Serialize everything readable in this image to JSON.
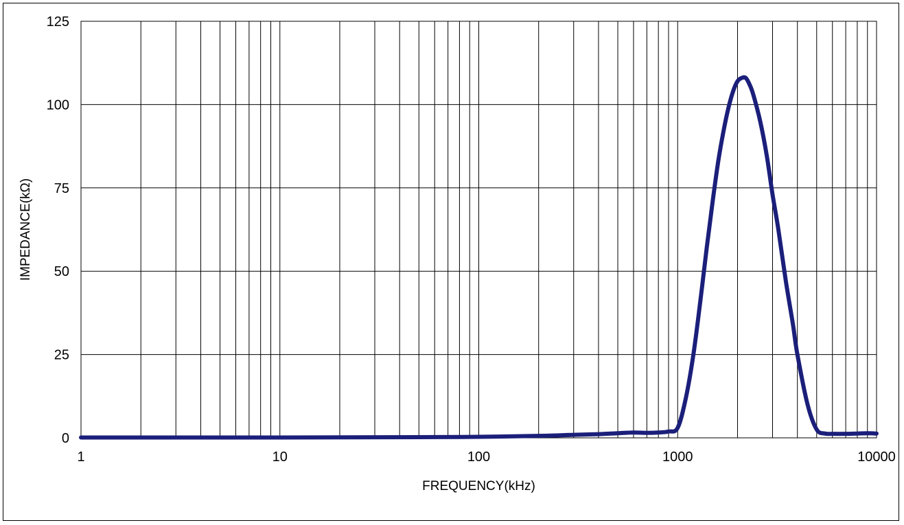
{
  "chart_data": {
    "type": "line",
    "title": "",
    "xlabel": "FREQUENCY(kHz)",
    "ylabel": "IMPEDANCE(kΩ)",
    "x_scale": "log",
    "xlim": [
      1,
      10000
    ],
    "ylim": [
      0,
      125
    ],
    "x_ticks": [
      1,
      10,
      100,
      1000,
      10000
    ],
    "x_tick_labels": [
      "1",
      "10",
      "100",
      "1000",
      "10000"
    ],
    "y_ticks": [
      0,
      25,
      50,
      75,
      100,
      125
    ],
    "y_tick_labels": [
      "0",
      "25",
      "50",
      "75",
      "100",
      "125"
    ],
    "grid": true,
    "legend": "none",
    "series": [
      {
        "color": "#1b1f7a",
        "x": [
          1,
          10,
          50,
          100,
          200,
          300,
          400,
          500,
          600,
          700,
          800,
          900,
          1000,
          1100,
          1200,
          1300,
          1400,
          1500,
          1600,
          1700,
          1800,
          1900,
          2000,
          2100,
          2200,
          2300,
          2400,
          2600,
          2800,
          3000,
          3200,
          3500,
          3800,
          4000,
          4500,
          5000,
          5500,
          6000,
          7000,
          8000,
          9000,
          10000
        ],
        "y": [
          0.1,
          0.1,
          0.2,
          0.3,
          0.6,
          0.9,
          1.1,
          1.4,
          1.6,
          1.5,
          1.6,
          1.9,
          3,
          12,
          25,
          41,
          57,
          71,
          83,
          92,
          99,
          104,
          107,
          108,
          108,
          106,
          103,
          95,
          85,
          73,
          63,
          47,
          34,
          25,
          10,
          2.5,
          1.3,
          1.2,
          1.2,
          1.3,
          1.4,
          1.3
        ]
      }
    ]
  }
}
